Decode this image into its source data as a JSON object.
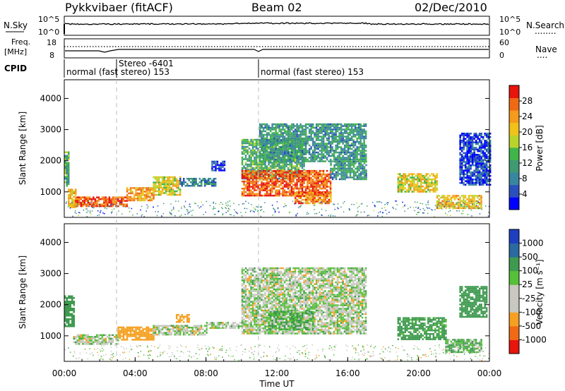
{
  "header": {
    "title": "Pykkvibaer (fitACF)",
    "beam": "Beam 02",
    "date": "02/Dec/2010"
  },
  "nsky_panel": {
    "left_label": "N.Sky",
    "left_ticks": [
      "10^5",
      "10^0"
    ],
    "right_ticks": [
      "10^5",
      "10^0"
    ],
    "right_label": "N.Search",
    "right_legend": "........"
  },
  "freq_panel": {
    "left_label_line1": "Freq.",
    "left_label_line2": "[MHz]",
    "left_ticks": [
      "18",
      "8"
    ],
    "right_ticks": [
      "60",
      "0"
    ],
    "right_label": "Nave",
    "right_legend": "...."
  },
  "cpid": {
    "label": "CPID",
    "segments": [
      {
        "text": "normal (fast stereo) 153"
      },
      {
        "text": "Stereo -6401"
      },
      {
        "text": "normal (fast stereo) 153"
      }
    ]
  },
  "chart_data": [
    {
      "type": "heatmap",
      "name": "power",
      "ylabel": "Slant Range [km]",
      "yticks": [
        1000,
        2000,
        3000,
        4000
      ],
      "ylim": [
        180,
        4600
      ],
      "xlim": [
        0,
        24
      ],
      "colorbar": {
        "label": "Power [dB]",
        "ticks": [
          "28",
          "24",
          "20",
          "16",
          "12",
          "8",
          "4"
        ],
        "colors": [
          "#0000ff",
          "#2b4fbd",
          "#3a86a0",
          "#3f9a73",
          "#3fb54a",
          "#b8d42a",
          "#f0c21a",
          "#f59a1c",
          "#f06a14",
          "#e8140e"
        ]
      },
      "regions": [
        {
          "t0": 0.0,
          "t1": 0.2,
          "r0": 1200,
          "r1": 2300,
          "value": 14
        },
        {
          "t0": 0.2,
          "t1": 0.6,
          "r0": 500,
          "r1": 1100,
          "value": 22
        },
        {
          "t0": 0.6,
          "t1": 3.5,
          "r0": 550,
          "r1": 850,
          "value": 28
        },
        {
          "t0": 3.5,
          "t1": 5.0,
          "r0": 700,
          "r1": 1150,
          "value": 24
        },
        {
          "t0": 5.0,
          "t1": 6.5,
          "r0": 900,
          "r1": 1500,
          "value": 20
        },
        {
          "t0": 6.5,
          "t1": 8.5,
          "r0": 1200,
          "r1": 1450,
          "value": 10
        },
        {
          "t0": 8.3,
          "t1": 9.0,
          "r0": 1700,
          "r1": 2000,
          "value": 6
        },
        {
          "t0": 10.0,
          "t1": 13.5,
          "r0": 1450,
          "r1": 2700,
          "value": 14
        },
        {
          "t0": 10.0,
          "t1": 15.0,
          "r0": 900,
          "r1": 1700,
          "value": 28
        },
        {
          "t0": 13.0,
          "t1": 15.0,
          "r0": 650,
          "r1": 1000,
          "value": 26
        },
        {
          "t0": 11.0,
          "t1": 17.0,
          "r0": 2000,
          "r1": 3200,
          "value": 12
        },
        {
          "t0": 15.0,
          "t1": 17.0,
          "r0": 1400,
          "r1": 2000,
          "value": 12
        },
        {
          "t0": 18.8,
          "t1": 21.0,
          "r0": 1000,
          "r1": 1600,
          "value": 20
        },
        {
          "t0": 21.0,
          "t1": 23.5,
          "r0": 500,
          "r1": 900,
          "value": 22
        },
        {
          "t0": 22.3,
          "t1": 24.0,
          "r0": 1200,
          "r1": 2900,
          "value": 6
        }
      ]
    },
    {
      "type": "heatmap",
      "name": "velocity",
      "ylabel": "Slant Range [km]",
      "yticks": [
        1000,
        2000,
        3000,
        4000
      ],
      "ylim": [
        180,
        4600
      ],
      "xlim": [
        0,
        24
      ],
      "xticks": [
        "00:00",
        "04:00",
        "08:00",
        "12:00",
        "16:00",
        "20:00",
        "00:00"
      ],
      "xlabel": "Time UT",
      "colorbar": {
        "label": "Velocity [m s⁻¹]",
        "ticks": [
          "1000",
          "500",
          "100",
          "25",
          "-25",
          "-100",
          "-500",
          "-1000"
        ],
        "colors": [
          "#e8140e",
          "#f06a14",
          "#f5a020",
          "#c8c8c0",
          "#c8c8c0",
          "#56c038",
          "#3f9a50",
          "#2b6aa0",
          "#1e3fc0"
        ]
      },
      "regions": [
        {
          "t0": 0.0,
          "t1": 0.5,
          "r0": 1300,
          "r1": 2300,
          "value": 300
        },
        {
          "t0": 0.5,
          "t1": 3.0,
          "r0": 750,
          "r1": 1050,
          "value": 0
        },
        {
          "t0": 3.0,
          "t1": 5.0,
          "r0": 900,
          "r1": 1300,
          "value": -300
        },
        {
          "t0": 5.0,
          "t1": 8.0,
          "r0": 1050,
          "r1": 1350,
          "value": 0
        },
        {
          "t0": 6.3,
          "t1": 7.0,
          "r0": 1450,
          "r1": 1700,
          "value": -300
        },
        {
          "t0": 8.0,
          "t1": 10.0,
          "r0": 1250,
          "r1": 1450,
          "value": 0
        },
        {
          "t0": 10.0,
          "t1": 17.0,
          "r0": 1100,
          "r1": 3200,
          "value": 0
        },
        {
          "t0": 11.5,
          "t1": 14.0,
          "r0": 1200,
          "r1": 1800,
          "value": 100
        },
        {
          "t0": 18.8,
          "t1": 21.5,
          "r0": 900,
          "r1": 1600,
          "value": 200
        },
        {
          "t0": 21.5,
          "t1": 23.5,
          "r0": 500,
          "r1": 900,
          "value": 100
        },
        {
          "t0": 22.3,
          "t1": 23.8,
          "r0": 1600,
          "r1": 2600,
          "value": 300
        }
      ]
    }
  ]
}
